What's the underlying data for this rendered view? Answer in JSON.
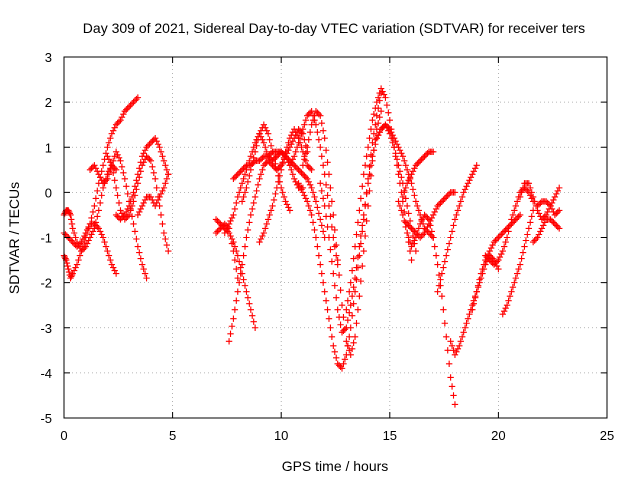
{
  "chart_data": {
    "type": "scatter",
    "title": "Day 309 of 2021, Sidereal Day-to-day VTEC variation (SDTVAR) for receiver ters",
    "xlabel": "GPS time / hours",
    "ylabel": "SDTVAR / TECUs",
    "xlim": [
      0,
      25
    ],
    "ylim": [
      -5,
      3
    ],
    "x_ticks": [
      "0",
      "5",
      "10",
      "15",
      "20",
      "25"
    ],
    "y_ticks": [
      "-5",
      "-4",
      "-3",
      "-2",
      "-1",
      "0",
      "1",
      "2",
      "3"
    ],
    "grid": true,
    "marker": "+",
    "color": "#ff0000",
    "series": [
      {
        "x": [
          0.0,
          0.1,
          0.2,
          0.3,
          0.4,
          0.6,
          0.8,
          1.0,
          1.2,
          1.4,
          1.6,
          1.8,
          2.0,
          2.2,
          2.4,
          2.6,
          2.8,
          3.0,
          3.2,
          3.4
        ],
        "y": [
          -1.4,
          -1.5,
          -1.7,
          -1.9,
          -1.8,
          -1.6,
          -1.3,
          -1.0,
          -0.7,
          -0.3,
          0.2,
          0.6,
          1.0,
          1.3,
          1.5,
          1.6,
          1.8,
          1.9,
          2.0,
          2.1
        ]
      },
      {
        "x": [
          0.0,
          0.1,
          0.2,
          0.3,
          0.4,
          0.6,
          0.8,
          1.0,
          1.2,
          1.4,
          1.6,
          1.8,
          2.0,
          2.2,
          2.4
        ],
        "y": [
          -0.5,
          -0.4,
          -0.4,
          -0.5,
          -0.8,
          -1.1,
          -1.3,
          -1.2,
          -1.0,
          -0.8,
          -0.4,
          0.1,
          0.4,
          0.6,
          0.5
        ]
      },
      {
        "x": [
          0.0,
          0.2,
          0.4,
          0.6,
          0.8,
          1.0,
          1.2,
          1.4,
          1.6,
          1.8,
          2.0,
          2.2,
          2.4
        ],
        "y": [
          -0.9,
          -1.0,
          -1.1,
          -1.2,
          -1.1,
          -0.9,
          -0.7,
          -0.7,
          -0.8,
          -1.0,
          -1.3,
          -1.6,
          -1.8
        ]
      },
      {
        "x": [
          1.2,
          1.4,
          1.6,
          1.8,
          2.0,
          2.2,
          2.4,
          2.6,
          2.8,
          3.0,
          3.2,
          3.4,
          3.6,
          3.8
        ],
        "y": [
          0.5,
          0.6,
          0.4,
          0.2,
          0.3,
          0.6,
          0.9,
          0.7,
          0.3,
          -0.2,
          -0.7,
          -1.2,
          -1.6,
          -1.9
        ]
      },
      {
        "x": [
          2.0,
          2.2,
          2.4,
          2.6,
          2.8,
          3.0,
          3.2,
          3.4,
          3.6,
          3.8,
          4.0,
          4.2,
          4.4,
          4.6,
          4.8
        ],
        "y": [
          0.8,
          0.6,
          0.1,
          -0.4,
          -0.6,
          -0.5,
          -0.2,
          0.2,
          0.6,
          0.8,
          0.7,
          0.3,
          -0.3,
          -0.9,
          -1.3
        ]
      },
      {
        "x": [
          2.4,
          2.6,
          2.8,
          3.0,
          3.2,
          3.4,
          3.6,
          3.8,
          4.0,
          4.2,
          4.4,
          4.6,
          4.8
        ],
        "y": [
          -0.5,
          -0.6,
          -0.5,
          -0.3,
          0.0,
          0.4,
          0.8,
          1.0,
          1.1,
          1.2,
          1.0,
          0.7,
          0.4
        ]
      },
      {
        "x": [
          3.4,
          3.6,
          3.8,
          4.0,
          4.2,
          4.4,
          4.6,
          4.8
        ],
        "y": [
          -0.5,
          -0.3,
          -0.1,
          -0.1,
          -0.3,
          -0.1,
          0.1,
          0.4
        ]
      },
      {
        "x": [
          7.0,
          7.2,
          7.4,
          7.6,
          7.8,
          8.0,
          8.2,
          8.4,
          8.6,
          8.8
        ],
        "y": [
          -0.6,
          -0.7,
          -0.8,
          -0.9,
          -1.1,
          -1.4,
          -1.8,
          -2.2,
          -2.6,
          -3.0
        ]
      },
      {
        "x": [
          7.0,
          7.2,
          7.4,
          7.6,
          7.8,
          8.0
        ],
        "y": [
          -0.9,
          -0.8,
          -0.7,
          -0.8,
          -1.3,
          -1.9
        ]
      },
      {
        "x": [
          7.4,
          7.6,
          7.8,
          8.0,
          8.2,
          8.4,
          8.6,
          8.8,
          9.0,
          9.2,
          9.4,
          9.6,
          9.8,
          10.0,
          10.2,
          10.4,
          10.6,
          10.8,
          11.0
        ],
        "y": [
          -0.9,
          -0.7,
          -0.5,
          -0.1,
          0.2,
          0.5,
          0.8,
          1.1,
          1.3,
          1.1,
          0.8,
          0.7,
          0.8,
          0.9,
          0.8,
          0.6,
          0.3,
          0.1,
          0.1
        ]
      },
      {
        "x": [
          7.8,
          8.0,
          8.2,
          8.4,
          8.6,
          8.8,
          9.0,
          9.2,
          9.4,
          9.6,
          9.8,
          10.0,
          10.2,
          10.4,
          10.6,
          10.8,
          11.0,
          11.2,
          11.4,
          11.6,
          11.8,
          12.0
        ],
        "y": [
          0.3,
          0.4,
          0.5,
          0.6,
          0.6,
          0.7,
          0.7,
          0.8,
          0.8,
          0.9,
          0.9,
          0.9,
          0.8,
          0.7,
          0.6,
          0.5,
          0.4,
          0.3,
          0.1,
          -0.2,
          -0.6,
          -1.0
        ]
      },
      {
        "x": [
          8.2,
          8.4,
          8.6,
          8.8,
          9.0,
          9.2,
          9.4,
          9.6,
          9.8,
          10.0,
          10.2,
          10.4
        ],
        "y": [
          -0.2,
          0.1,
          0.5,
          0.9,
          1.3,
          1.5,
          1.3,
          0.9,
          0.5,
          0.1,
          -0.2,
          -0.4
        ]
      },
      {
        "x": [
          7.6,
          7.8,
          8.0,
          8.2,
          8.4,
          8.6,
          8.8,
          9.0,
          9.2,
          9.4,
          9.6,
          9.8,
          10.0,
          10.2,
          10.4,
          10.6,
          10.8,
          11.0,
          11.2
        ],
        "y": [
          -3.3,
          -2.8,
          -2.2,
          -1.6,
          -1.0,
          -0.5,
          -0.1,
          0.3,
          0.6,
          0.7,
          0.6,
          0.5,
          0.6,
          0.8,
          1.0,
          1.2,
          1.4,
          1.3,
          0.9
        ]
      },
      {
        "x": [
          9.0,
          9.2,
          9.4,
          9.6,
          9.8,
          10.0,
          10.2,
          10.4,
          10.6,
          10.8,
          11.0,
          11.2,
          11.4
        ],
        "y": [
          -1.1,
          -0.9,
          -0.6,
          -0.3,
          0.1,
          0.5,
          0.9,
          1.2,
          1.4,
          1.2,
          0.9,
          0.6,
          0.5
        ]
      },
      {
        "x": [
          10.4,
          10.6,
          10.8,
          11.0,
          11.2,
          11.4,
          11.6,
          11.8,
          12.0,
          12.2,
          12.4,
          12.6
        ],
        "y": [
          0.6,
          0.8,
          1.1,
          1.4,
          1.7,
          1.8,
          1.5,
          1.0,
          0.4,
          -0.3,
          -1.0,
          -1.6
        ]
      },
      {
        "x": [
          10.8,
          11.0,
          11.2,
          11.4,
          11.6,
          11.8,
          12.0,
          12.2,
          12.4,
          12.6,
          12.8,
          13.0,
          13.2,
          13.4,
          13.6,
          13.8,
          14.0,
          14.2,
          14.4,
          14.6
        ],
        "y": [
          0.2,
          0.0,
          -0.2,
          -0.5,
          -1.0,
          -1.6,
          -2.2,
          -2.8,
          -3.4,
          -3.8,
          -3.9,
          -3.6,
          -3.0,
          -2.2,
          -1.4,
          -0.6,
          0.3,
          1.1,
          1.7,
          2.2
        ]
      },
      {
        "x": [
          11.0,
          11.2,
          11.4,
          11.6,
          11.8,
          12.0,
          12.2,
          12.4,
          12.6,
          12.8,
          13.0,
          13.2,
          13.4,
          13.6,
          13.8,
          14.0,
          14.2,
          14.4,
          14.6
        ],
        "y": [
          0.6,
          1.0,
          1.5,
          1.8,
          1.7,
          1.2,
          0.4,
          -0.5,
          -1.5,
          -2.5,
          -3.3,
          -3.6,
          -3.2,
          -2.3,
          -1.3,
          -0.3,
          0.7,
          1.4,
          1.8
        ]
      },
      {
        "x": [
          11.8,
          12.0,
          12.2,
          12.4,
          12.6,
          12.8,
          13.0,
          13.2,
          13.4,
          13.6,
          13.8,
          14.0,
          14.2,
          14.4,
          14.6,
          14.8,
          15.0,
          15.2,
          15.4,
          15.6,
          15.8,
          16.0,
          16.2
        ],
        "y": [
          0.2,
          -0.3,
          -1.0,
          -1.8,
          -2.6,
          -3.1,
          -3.0,
          -2.5,
          -1.9,
          -1.2,
          -0.5,
          0.2,
          0.8,
          1.2,
          1.4,
          1.5,
          1.3,
          1.0,
          0.6,
          0.2,
          -0.3,
          -0.8,
          -1.3
        ]
      },
      {
        "x": [
          13.0,
          13.2,
          13.4,
          13.6,
          13.8,
          14.0,
          14.2,
          14.4,
          14.6,
          14.8,
          15.0,
          15.2,
          15.4,
          15.6,
          15.8,
          16.0
        ],
        "y": [
          -2.6,
          -2.0,
          -1.2,
          -0.4,
          0.4,
          1.0,
          1.6,
          2.0,
          2.3,
          2.1,
          1.6,
          1.0,
          0.4,
          -0.2,
          -0.9,
          -1.5
        ]
      },
      {
        "x": [
          14.4,
          14.6,
          14.8,
          15.0,
          15.2,
          15.4,
          15.6,
          15.8,
          16.0,
          16.2,
          16.4,
          16.6,
          16.8,
          17.0
        ],
        "y": [
          1.2,
          1.4,
          1.5,
          1.4,
          1.2,
          1.0,
          0.8,
          0.5,
          0.2,
          -0.2,
          -0.5,
          -0.8,
          -0.9,
          -1.0
        ]
      },
      {
        "x": [
          15.4,
          15.6,
          15.8,
          16.0,
          16.2,
          16.4,
          16.6,
          16.8,
          17.0,
          17.2,
          17.4,
          17.6,
          17.8,
          18.0
        ],
        "y": [
          -0.2,
          -0.5,
          -0.9,
          -1.2,
          -1.0,
          -0.7,
          -0.5,
          -0.6,
          -1.0,
          -1.6,
          -2.3,
          -3.2,
          -4.1,
          -4.7
        ]
      },
      {
        "x": [
          15.8,
          16.0,
          16.2,
          16.4,
          16.6,
          16.8,
          17.0,
          17.2,
          17.4,
          17.6,
          17.8,
          18.0
        ],
        "y": [
          -0.7,
          -0.8,
          -0.9,
          -1.0,
          -0.9,
          -0.7,
          -0.5,
          -0.3,
          -0.2,
          -0.1,
          0.0,
          0.0
        ]
      },
      {
        "x": [
          15.6,
          15.8,
          16.0,
          16.2,
          16.4,
          16.6,
          16.8,
          17.0
        ],
        "y": [
          -0.1,
          0.2,
          0.4,
          0.6,
          0.7,
          0.8,
          0.9,
          0.9
        ]
      },
      {
        "x": [
          17.2,
          17.4,
          17.6,
          17.8,
          18.0,
          18.2,
          18.4,
          18.6,
          18.8,
          19.0
        ],
        "y": [
          -2.2,
          -1.8,
          -1.4,
          -1.0,
          -0.6,
          -0.3,
          0.0,
          0.2,
          0.4,
          0.6
        ]
      },
      {
        "x": [
          17.8,
          18.0,
          18.2,
          18.4,
          18.6,
          18.8,
          19.0,
          19.2,
          19.4,
          19.6,
          19.8,
          20.0
        ],
        "y": [
          -3.3,
          -3.6,
          -3.4,
          -3.1,
          -2.8,
          -2.5,
          -2.2,
          -1.9,
          -1.6,
          -1.4,
          -1.5,
          -1.7
        ]
      },
      {
        "x": [
          18.8,
          19.0,
          19.2,
          19.4,
          19.6,
          19.8,
          20.0,
          20.2,
          20.4,
          20.6,
          20.8,
          21.0
        ],
        "y": [
          -2.6,
          -2.2,
          -1.8,
          -1.5,
          -1.3,
          -1.1,
          -1.0,
          -0.9,
          -0.8,
          -0.7,
          -0.6,
          -0.5
        ]
      },
      {
        "x": [
          19.4,
          19.6,
          19.8,
          20.0,
          20.2,
          20.4,
          20.6,
          20.8,
          21.0,
          21.2,
          21.4,
          21.6
        ],
        "y": [
          -1.4,
          -1.5,
          -1.6,
          -1.5,
          -1.3,
          -1.0,
          -0.6,
          -0.3,
          0.0,
          0.1,
          0.0,
          -0.2
        ]
      },
      {
        "x": [
          20.2,
          20.4,
          20.6,
          20.8,
          21.0,
          21.2,
          21.4,
          21.6
        ],
        "y": [
          -2.7,
          -2.5,
          -2.2,
          -1.9,
          -1.6,
          -1.2,
          -0.8,
          -0.4
        ]
      },
      {
        "x": [
          21.0,
          21.2,
          21.4,
          21.6,
          21.8,
          22.0,
          22.2,
          22.4,
          22.6,
          22.8
        ],
        "y": [
          -0.1,
          0.2,
          0.2,
          -0.1,
          -0.4,
          -0.6,
          -0.5,
          -0.3,
          -0.1,
          0.1
        ]
      },
      {
        "x": [
          21.6,
          21.8,
          22.0,
          22.2,
          22.4,
          22.6,
          22.8
        ],
        "y": [
          -1.1,
          -1.0,
          -0.8,
          -0.6,
          -0.6,
          -0.7,
          -0.8
        ]
      },
      {
        "x": [
          21.8,
          22.0,
          22.2,
          22.4,
          22.6,
          22.8
        ],
        "y": [
          -0.3,
          -0.2,
          -0.2,
          -0.3,
          -0.5,
          -0.4
        ]
      }
    ]
  }
}
